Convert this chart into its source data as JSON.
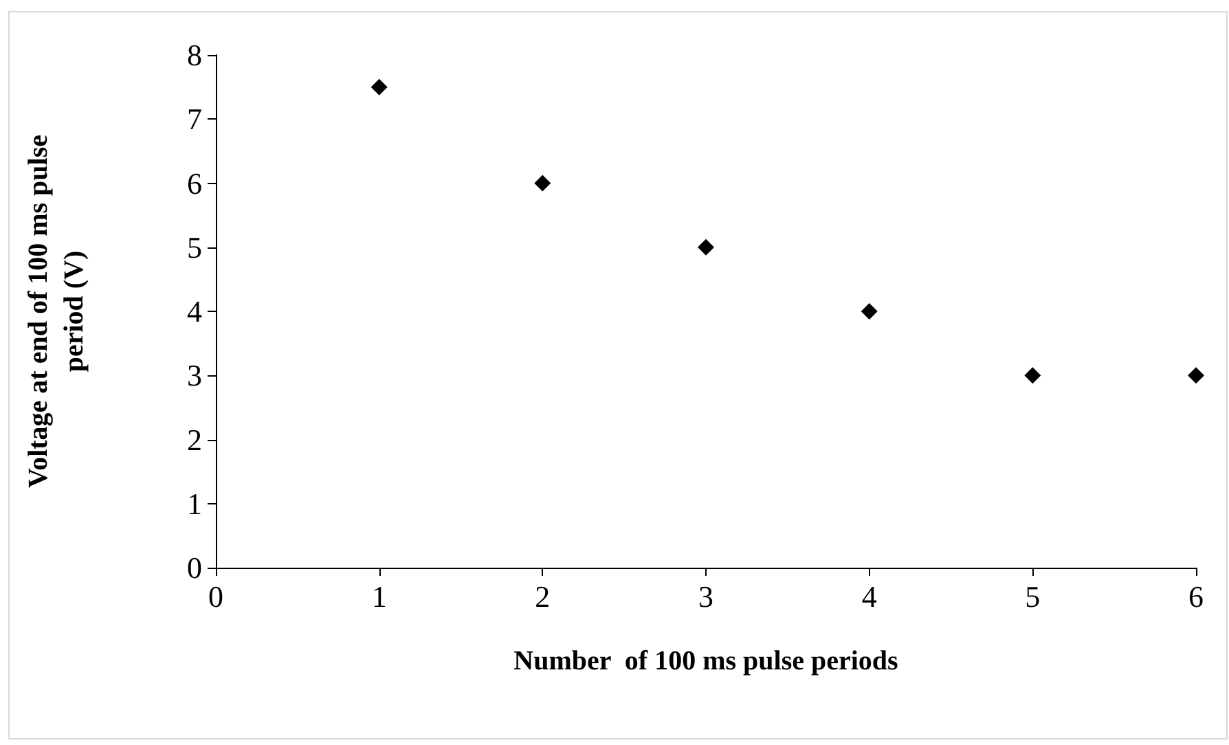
{
  "chart_data": {
    "type": "scatter",
    "xlabel": "Number  of 100 ms pulse periods",
    "ylabel": "Voltage at end of 100 ms pulse period (V)",
    "x": [
      1,
      2,
      3,
      4,
      5,
      6
    ],
    "series": [
      {
        "color": "#000000",
        "values": [
          7.5,
          6,
          5,
          4,
          3,
          3
        ]
      }
    ],
    "xlim": [
      0,
      6
    ],
    "xticks": [
      0,
      1,
      2,
      3,
      4,
      5,
      6
    ],
    "ylim": [
      0,
      8
    ],
    "yticks": [
      0,
      1,
      2,
      3,
      4,
      5,
      6,
      7,
      8
    ],
    "grid": false,
    "marker": "diamond"
  }
}
